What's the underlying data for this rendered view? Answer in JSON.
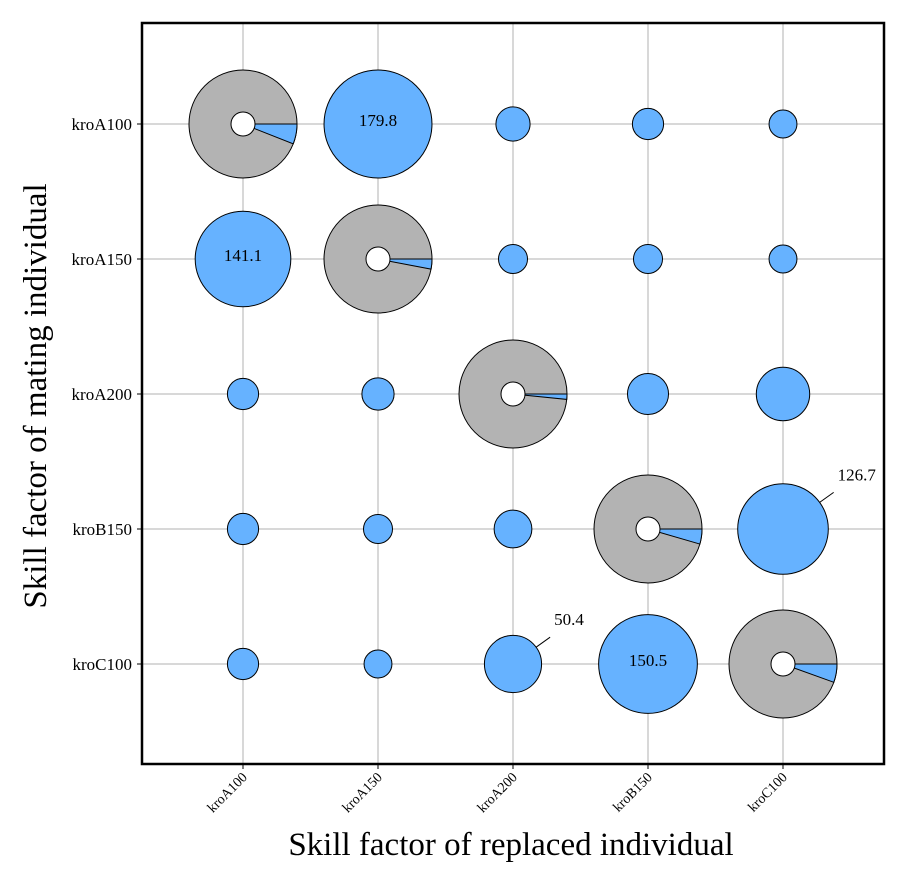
{
  "chart_data": {
    "type": "bubble-pie-matrix",
    "title": "",
    "xlabel": "Skill factor of replaced individual",
    "ylabel": "Skill factor of mating individual",
    "x_categories": [
      "kroA100",
      "kroA150",
      "kroA200",
      "kroB150",
      "kroC100"
    ],
    "y_categories": [
      "kroA100",
      "kroA150",
      "kroA200",
      "kroB150",
      "kroC100"
    ],
    "grid": true,
    "colors": {
      "transfer": "#66b2ff",
      "self": "#b3b3b3",
      "hole": "#ffffff",
      "edge": "#000000"
    },
    "cells": [
      {
        "row": "kroA100",
        "col": "kroA100",
        "kind": "pie",
        "size": 180,
        "blue_fraction": 0.06
      },
      {
        "row": "kroA100",
        "col": "kroA150",
        "kind": "bubble",
        "size": 179.8,
        "label": "179.8",
        "label_pos": "inside"
      },
      {
        "row": "kroA100",
        "col": "kroA200",
        "kind": "bubble",
        "size": 18
      },
      {
        "row": "kroA100",
        "col": "kroB150",
        "kind": "bubble",
        "size": 15
      },
      {
        "row": "kroA100",
        "col": "kroC100",
        "kind": "bubble",
        "size": 12
      },
      {
        "row": "kroA150",
        "col": "kroA100",
        "kind": "bubble",
        "size": 141.1,
        "label": "141.1",
        "label_pos": "inside"
      },
      {
        "row": "kroA150",
        "col": "kroA150",
        "kind": "pie",
        "size": 180,
        "blue_fraction": 0.03
      },
      {
        "row": "kroA150",
        "col": "kroA200",
        "kind": "bubble",
        "size": 13
      },
      {
        "row": "kroA150",
        "col": "kroB150",
        "kind": "bubble",
        "size": 13
      },
      {
        "row": "kroA150",
        "col": "kroC100",
        "kind": "bubble",
        "size": 12
      },
      {
        "row": "kroA200",
        "col": "kroA100",
        "kind": "bubble",
        "size": 15
      },
      {
        "row": "kroA200",
        "col": "kroA150",
        "kind": "bubble",
        "size": 16
      },
      {
        "row": "kroA200",
        "col": "kroA200",
        "kind": "pie",
        "size": 180,
        "blue_fraction": 0.016
      },
      {
        "row": "kroA200",
        "col": "kroB150",
        "kind": "bubble",
        "size": 26
      },
      {
        "row": "kroA200",
        "col": "kroC100",
        "kind": "bubble",
        "size": 44
      },
      {
        "row": "kroB150",
        "col": "kroA100",
        "kind": "bubble",
        "size": 15
      },
      {
        "row": "kroB150",
        "col": "kroA150",
        "kind": "bubble",
        "size": 13
      },
      {
        "row": "kroB150",
        "col": "kroA200",
        "kind": "bubble",
        "size": 22
      },
      {
        "row": "kroB150",
        "col": "kroB150",
        "kind": "pie",
        "size": 180,
        "blue_fraction": 0.045
      },
      {
        "row": "kroB150",
        "col": "kroC100",
        "kind": "bubble",
        "size": 126.7,
        "label": "126.7",
        "label_pos": "callout"
      },
      {
        "row": "kroC100",
        "col": "kroA100",
        "kind": "bubble",
        "size": 15
      },
      {
        "row": "kroC100",
        "col": "kroA150",
        "kind": "bubble",
        "size": 12
      },
      {
        "row": "kroC100",
        "col": "kroA200",
        "kind": "bubble",
        "size": 50.4,
        "label": "50.4",
        "label_pos": "callout"
      },
      {
        "row": "kroC100",
        "col": "kroB150",
        "kind": "bubble",
        "size": 150.5,
        "label": "150.5",
        "label_pos": "inside"
      },
      {
        "row": "kroC100",
        "col": "kroC100",
        "kind": "pie",
        "size": 180,
        "blue_fraction": 0.055
      }
    ]
  }
}
